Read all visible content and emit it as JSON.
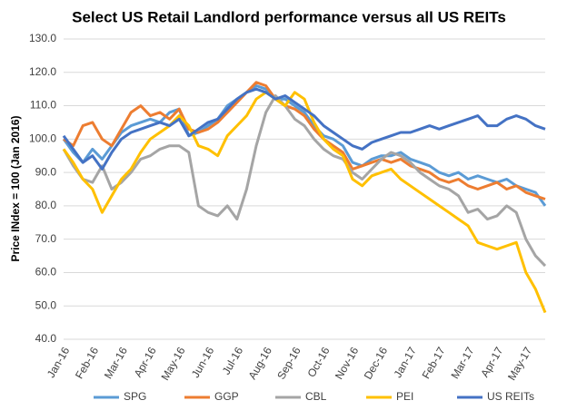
{
  "chart_data": {
    "type": "line",
    "title": "Select US Retail Landlord performance versus all US REITs",
    "y_label": "Price INdex = 100 (Jan 2016)",
    "categories": [
      "Jan-16",
      null,
      null,
      "Feb-16",
      null,
      null,
      "Mar-16",
      null,
      null,
      "Apr-16",
      null,
      null,
      "May-16",
      null,
      null,
      "Jun-16",
      null,
      null,
      "Jul-16",
      null,
      null,
      "Aug-16",
      null,
      null,
      "Sep-16",
      null,
      null,
      "Oct-16",
      null,
      null,
      "Nov-16",
      null,
      null,
      "Dec-16",
      null,
      null,
      "Jan-17",
      null,
      null,
      "Feb-17",
      null,
      null,
      "Mar-17",
      null,
      null,
      "Apr-17",
      null,
      null,
      "May-17",
      null,
      null
    ],
    "series": [
      {
        "name": "SPG",
        "color": "#5b9bd5",
        "values": [
          100,
          96,
          93,
          97,
          94,
          98,
          102,
          104,
          105,
          106,
          105,
          108,
          109,
          101,
          102,
          104,
          106,
          110,
          112,
          114,
          116,
          115,
          112,
          112,
          110,
          108,
          104,
          101,
          100,
          98,
          93,
          92,
          94,
          95,
          95,
          96,
          94,
          93,
          92,
          90,
          89,
          90,
          88,
          89,
          88,
          87,
          88,
          86,
          85,
          84,
          80
        ]
      },
      {
        "name": "GGP",
        "color": "#ed7d31",
        "values": [
          100,
          98,
          104,
          105,
          100,
          98,
          103,
          108,
          110,
          107,
          108,
          106,
          109,
          103,
          102,
          103,
          105,
          108,
          111,
          114,
          117,
          116,
          112,
          110,
          109,
          107,
          103,
          100,
          98,
          96,
          91,
          92,
          93,
          94,
          93,
          94,
          92,
          91,
          90,
          88,
          87,
          88,
          86,
          85,
          86,
          87,
          85,
          86,
          84,
          83,
          82
        ]
      },
      {
        "name": "CBL",
        "color": "#a5a5a5",
        "values": [
          97,
          92,
          88,
          87,
          92,
          85,
          87,
          90,
          94,
          95,
          97,
          98,
          98,
          96,
          80,
          78,
          77,
          80,
          76,
          85,
          98,
          108,
          113,
          110,
          106,
          104,
          100,
          97,
          95,
          94,
          90,
          88,
          91,
          94,
          96,
          95,
          93,
          90,
          88,
          86,
          85,
          83,
          78,
          79,
          76,
          77,
          80,
          78,
          70,
          65,
          62
        ]
      },
      {
        "name": "PEI",
        "color": "#ffc000",
        "values": [
          97,
          93,
          88,
          85,
          78,
          83,
          88,
          91,
          96,
          100,
          102,
          104,
          107,
          104,
          98,
          97,
          95,
          101,
          104,
          107,
          112,
          114,
          112,
          110,
          114,
          112,
          105,
          100,
          97,
          95,
          88,
          86,
          89,
          90,
          91,
          88,
          86,
          84,
          82,
          80,
          78,
          76,
          74,
          69,
          68,
          67,
          68,
          69,
          60,
          55,
          48
        ]
      },
      {
        "name": "US REITs",
        "color": "#4472c4",
        "values": [
          101,
          97,
          93,
          95,
          91,
          96,
          100,
          102,
          103,
          104,
          105,
          104,
          106,
          101,
          103,
          105,
          106,
          109,
          112,
          114,
          115,
          114,
          112,
          113,
          111,
          109,
          107,
          104,
          102,
          100,
          98,
          97,
          99,
          100,
          101,
          102,
          102,
          103,
          104,
          103,
          104,
          105,
          106,
          107,
          104,
          104,
          106,
          107,
          106,
          104,
          103
        ]
      }
    ],
    "ylim": [
      40,
      130
    ],
    "yticks": [
      {
        "value": 40,
        "label": "40.0"
      },
      {
        "value": 50,
        "label": "50.0"
      },
      {
        "value": 60,
        "label": "60.0"
      },
      {
        "value": 70,
        "label": "70.0"
      },
      {
        "value": 80,
        "label": "80.0"
      },
      {
        "value": 90,
        "label": "90.0"
      },
      {
        "value": 100,
        "label": "100.0"
      },
      {
        "value": 110,
        "label": "110.0"
      },
      {
        "value": 120,
        "label": "120.0"
      },
      {
        "value": 130,
        "label": "130.0"
      }
    ],
    "grid": true,
    "legend": "bottom"
  }
}
